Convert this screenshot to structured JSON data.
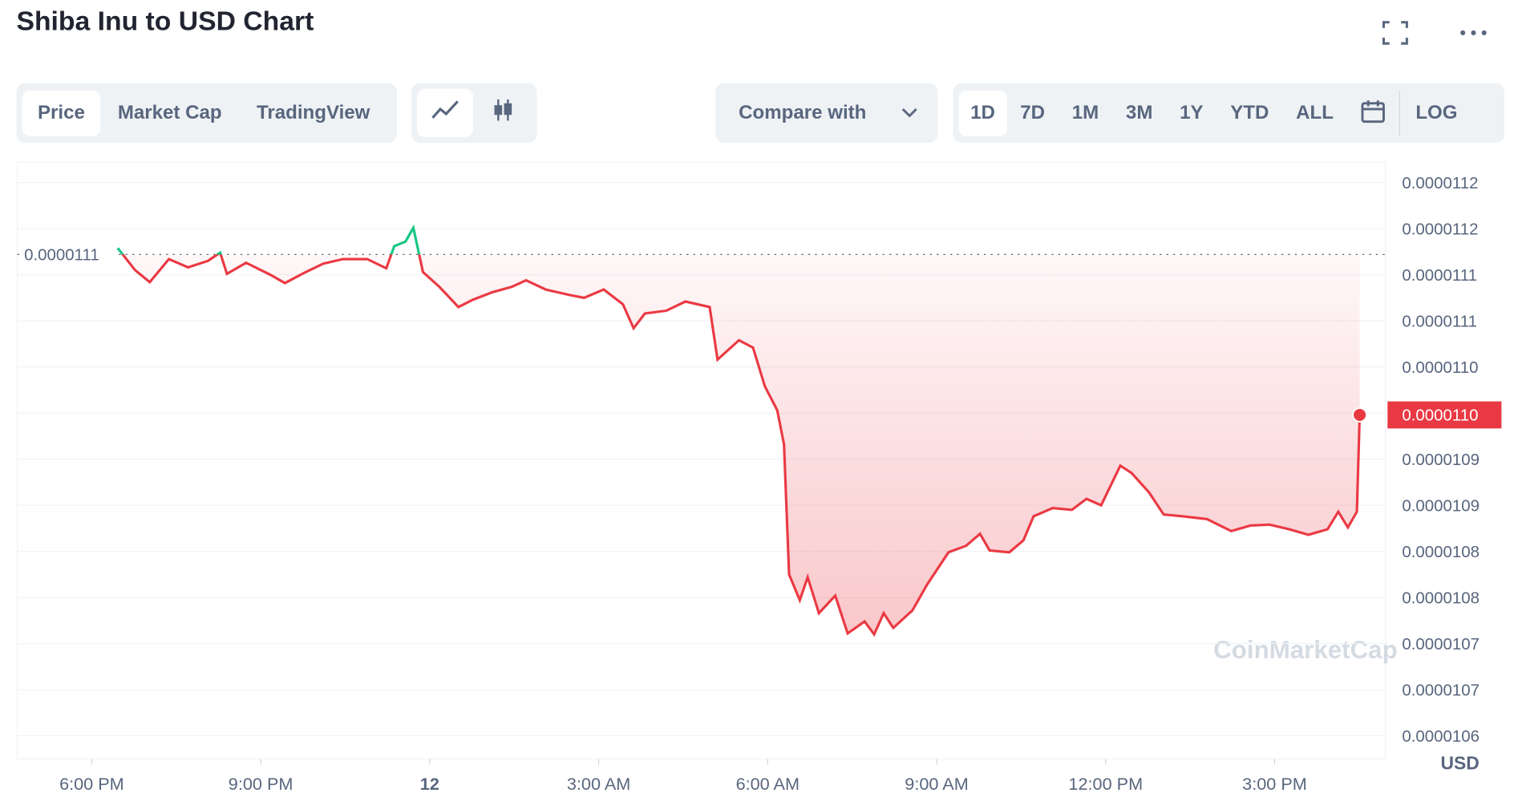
{
  "header": {
    "title": "Shiba Inu to USD Chart"
  },
  "toolbar": {
    "tabs": [
      "Price",
      "Market Cap",
      "TradingView"
    ],
    "compare": "Compare with",
    "ranges": [
      "1D",
      "7D",
      "1M",
      "3M",
      "1Y",
      "YTD",
      "ALL"
    ],
    "scale": "LOG"
  },
  "chart_data": {
    "type": "line",
    "currency": "USD",
    "watermark": "CoinMarketCap",
    "x": [
      0.46,
      0.77,
      1.03,
      1.37,
      1.71,
      2.06,
      2.28,
      2.4,
      2.74,
      3.17,
      3.43,
      3.77,
      4.11,
      4.46,
      4.89,
      5.23,
      5.37,
      5.57,
      5.71,
      5.88,
      6.17,
      6.51,
      6.77,
      7.11,
      7.46,
      7.71,
      8.06,
      8.49,
      8.74,
      9.09,
      9.43,
      9.62,
      9.82,
      10.2,
      10.54,
      10.97,
      11.11,
      11.49,
      11.74,
      11.95,
      12.17,
      12.29,
      12.38,
      12.57,
      12.71,
      12.91,
      13.2,
      13.42,
      13.72,
      13.89,
      14.06,
      14.23,
      14.57,
      14.83,
      15.21,
      15.52,
      15.77,
      15.94,
      16.29,
      16.54,
      16.72,
      17.06,
      17.4,
      17.66,
      17.92,
      18.26,
      18.46,
      18.77,
      19.03,
      19.37,
      19.8,
      20.23,
      20.57,
      20.91,
      21.26,
      21.6,
      21.94,
      22.13,
      22.3,
      22.46,
      22.51
    ],
    "series": [
      {
        "color": "#ea3943",
        "up_color": "#16c784",
        "values": [
          1.1149e-05,
          1.1125e-05,
          1.1112e-05,
          1.1137e-05,
          1.1128e-05,
          1.1135e-05,
          1.1144e-05,
          1.1121e-05,
          1.1133e-05,
          1.112e-05,
          1.1111e-05,
          1.1122e-05,
          1.1132e-05,
          1.1137e-05,
          1.1137e-05,
          1.1127e-05,
          1.1151e-05,
          1.1156e-05,
          1.1171e-05,
          1.1123e-05,
          1.1107e-05,
          1.1085e-05,
          1.1093e-05,
          1.1101e-05,
          1.1107e-05,
          1.1114e-05,
          1.1104e-05,
          1.1098e-05,
          1.1095e-05,
          1.1104e-05,
          1.1088e-05,
          1.1062e-05,
          1.1078e-05,
          1.1081e-05,
          1.1091e-05,
          1.1085e-05,
          1.1028e-05,
          1.1049e-05,
          1.1041e-05,
          1.0999e-05,
          1.0973e-05,
          1.0936e-05,
          1.0795e-05,
          1.0767e-05,
          1.0792e-05,
          1.0753e-05,
          1.0772e-05,
          1.0731e-05,
          1.0744e-05,
          1.073e-05,
          1.0753e-05,
          1.0737e-05,
          1.0756e-05,
          1.0784e-05,
          1.0819e-05,
          1.0826e-05,
          1.0839e-05,
          1.0821e-05,
          1.0819e-05,
          1.0832e-05,
          1.0858e-05,
          1.0867e-05,
          1.0865e-05,
          1.0877e-05,
          1.087e-05,
          1.0913e-05,
          1.0905e-05,
          1.0884e-05,
          1.086e-05,
          1.0858e-05,
          1.0855e-05,
          1.0842e-05,
          1.0848e-05,
          1.0849e-05,
          1.0844e-05,
          1.0838e-05,
          1.0844e-05,
          1.0863e-05,
          1.0846e-05,
          1.0863e-05,
          1.0968e-05
        ]
      }
    ],
    "reference_line": {
      "value": 1.1142e-05,
      "label": "0.0000111"
    },
    "current_price": {
      "value": 1.0968e-05,
      "label": "0.0000110"
    },
    "xlim": [
      -1.32,
      22.97
    ],
    "xticks": [
      {
        "value": 0,
        "label": "6:00 PM"
      },
      {
        "value": 3,
        "label": "9:00 PM"
      },
      {
        "value": 6,
        "label": "12"
      },
      {
        "value": 9,
        "label": "3:00 AM"
      },
      {
        "value": 12,
        "label": "6:00 AM"
      },
      {
        "value": 15,
        "label": "9:00 AM"
      },
      {
        "value": 18,
        "label": "12:00 PM"
      },
      {
        "value": 21,
        "label": "3:00 PM"
      }
    ],
    "ylim": [
      1.0595e-05,
      1.124e-05
    ],
    "yticks": [
      {
        "value": 1.122e-05,
        "label": "0.0000112"
      },
      {
        "value": 1.117e-05,
        "label": "0.0000112"
      },
      {
        "value": 1.112e-05,
        "label": "0.0000111"
      },
      {
        "value": 1.107e-05,
        "label": "0.0000111"
      },
      {
        "value": 1.102e-05,
        "label": "0.0000110"
      },
      {
        "value": 1.097e-05,
        "label": "0.0000110"
      },
      {
        "value": 1.092e-05,
        "label": "0.0000109"
      },
      {
        "value": 1.087e-05,
        "label": "0.0000109"
      },
      {
        "value": 1.082e-05,
        "label": "0.0000108"
      },
      {
        "value": 1.077e-05,
        "label": "0.0000108"
      },
      {
        "value": 1.072e-05,
        "label": "0.0000107"
      },
      {
        "value": 1.067e-05,
        "label": "0.0000107"
      },
      {
        "value": 1.062e-05,
        "label": "0.0000106"
      }
    ],
    "grid": true
  }
}
